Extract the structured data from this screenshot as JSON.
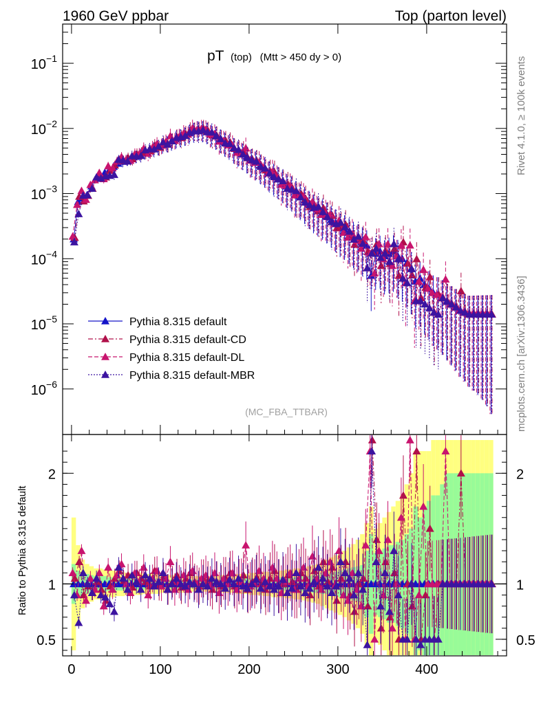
{
  "header": {
    "left": "1960 GeV ppbar",
    "right": "Top (parton level)"
  },
  "side": {
    "rivet": "Rivet 4.1.0, ≥ 100k events",
    "source": "mcplots.cern.ch [arXiv:1306.3436]"
  },
  "colors": {
    "default": "#1414c8",
    "cd": "#b0104a",
    "dl": "#c8146e",
    "mbr": "#3c14a0",
    "band_inner": "#98fb98",
    "band_outer": "#ffff80"
  },
  "chart_data": {
    "type": "line",
    "title_main": "pT",
    "title_sub": "(top)",
    "title_cut": "(Mtt > 450 dy > 0)",
    "watermark": "(MC_FBA_TTBAR)",
    "xlim": [
      -10,
      490
    ],
    "x_ticks": [
      "0",
      "100",
      "200",
      "300",
      "400"
    ],
    "x_tick_values": [
      0,
      100,
      200,
      300,
      400
    ],
    "main": {
      "yscale": "log",
      "ylim": [
        2e-07,
        0.4
      ],
      "y_ticks": [
        {
          "base": "10",
          "exp": "−1",
          "value": 0.1
        },
        {
          "base": "10",
          "exp": "−2",
          "value": 0.01
        },
        {
          "base": "10",
          "exp": "−3",
          "value": 0.001
        },
        {
          "base": "10",
          "exp": "−4",
          "value": 0.0001
        },
        {
          "base": "10",
          "exp": "−5",
          "value": 1e-05
        },
        {
          "base": "10",
          "exp": "−6",
          "value": 1e-06
        }
      ]
    },
    "ratio": {
      "ylabel": "Ratio to Pythia 8.315 default",
      "ylim": [
        0.35,
        2.35
      ],
      "y_ticks": [
        "0.5",
        "1",
        "2"
      ],
      "y_tick_values": [
        0.5,
        1,
        2
      ]
    },
    "series": [
      {
        "name": "Pythia 8.315 default",
        "key": "default",
        "style": "solid"
      },
      {
        "name": "Pythia 8.315 default-CD",
        "key": "cd",
        "style": "dashdot"
      },
      {
        "name": "Pythia 8.315 default-DL",
        "key": "dl",
        "style": "dashed"
      },
      {
        "name": "Pythia 8.315 default-MBR",
        "key": "mbr",
        "style": "dotted"
      }
    ],
    "x": [
      2.5,
      7.5,
      12.5,
      17.5,
      22.5,
      27.5,
      32.5,
      37.5,
      42.5,
      47.5,
      52.5,
      57.5,
      62.5,
      67.5,
      72.5,
      77.5,
      82.5,
      87.5,
      92.5,
      97.5,
      102.5,
      107.5,
      112.5,
      117.5,
      122.5,
      127.5,
      132.5,
      137.5,
      142.5,
      147.5,
      152.5,
      157.5,
      162.5,
      167.5,
      172.5,
      177.5,
      182.5,
      187.5,
      192.5,
      197.5,
      202.5,
      207.5,
      212.5,
      217.5,
      222.5,
      227.5,
      232.5,
      237.5,
      242.5,
      247.5,
      252.5,
      257.5,
      262.5,
      267.5,
      272.5,
      277.5,
      282.5,
      287.5,
      292.5,
      297.5,
      302.5,
      307.5,
      312.5,
      317.5,
      322.5,
      327.5,
      332.5,
      337.5,
      342.5,
      347.5,
      352.5,
      357.5,
      362.5,
      367.5,
      372.5,
      377.5,
      382.5,
      387.5,
      392.5,
      397.5,
      402.5,
      407.5,
      412.5,
      417.5,
      422.5,
      427.5,
      432.5,
      437.5,
      442.5,
      447.5,
      452.5,
      457.5,
      462.5,
      467.5,
      472.5
    ],
    "default_values": [
      0.0002,
      0.00075,
      0.00085,
      0.00095,
      0.0013,
      0.0017,
      0.0019,
      0.0021,
      0.0023,
      0.0026,
      0.0029,
      0.0031,
      0.0033,
      0.0035,
      0.0037,
      0.004,
      0.0043,
      0.0046,
      0.0049,
      0.0052,
      0.0056,
      0.006,
      0.0064,
      0.0069,
      0.0074,
      0.0079,
      0.0085,
      0.0091,
      0.0096,
      0.0095,
      0.009,
      0.0083,
      0.0076,
      0.0069,
      0.0062,
      0.0056,
      0.005,
      0.0045,
      0.0041,
      0.0037,
      0.0033,
      0.003,
      0.0027,
      0.0024,
      0.0021,
      0.0019,
      0.0017,
      0.0015,
      0.0013,
      0.0012,
      0.001,
      0.0009,
      0.0008,
      0.0007,
      0.0006,
      0.00055,
      0.0005,
      0.00045,
      0.0004,
      0.00035,
      0.0003,
      0.00028,
      0.00025,
      0.00022,
      0.0002,
      0.00018,
      0.00016,
      5.5e-05,
      0.00012,
      0.00013,
      0.00011,
      0.00012,
      0.00013,
      0.00011,
      0.0001,
      8.5e-05,
      7e-05,
      4.5e-05,
      5e-05,
      4e-05,
      3.5e-05,
      3e-05,
      2.8e-05,
      2.5e-05,
      2.2e-05,
      2e-05,
      1.8e-05,
      1.6e-05,
      1.5e-05,
      1.4e-05,
      1.4e-05,
      1.4e-05,
      1.4e-05,
      1.4e-05,
      1.4e-05
    ],
    "ratio_band": {
      "inner_rel": [
        0.18,
        0.12,
        0.1,
        0.09,
        0.08,
        0.07,
        0.07,
        0.07,
        0.06,
        0.06,
        0.06,
        0.06,
        0.05,
        0.05,
        0.05,
        0.05,
        0.05,
        0.05,
        0.05,
        0.05,
        0.04,
        0.04,
        0.04,
        0.04,
        0.04,
        0.04,
        0.04,
        0.04,
        0.04,
        0.04,
        0.04,
        0.04,
        0.04,
        0.04,
        0.04,
        0.04,
        0.04,
        0.04,
        0.05,
        0.05,
        0.05,
        0.05,
        0.05,
        0.05,
        0.05,
        0.05,
        0.06,
        0.06,
        0.06,
        0.06,
        0.06,
        0.07,
        0.07,
        0.07,
        0.08,
        0.08,
        0.09,
        0.09,
        0.1,
        0.11,
        0.12,
        0.13,
        0.14,
        0.15,
        0.16,
        0.17,
        0.3,
        0.45,
        0.28,
        0.3,
        0.32,
        0.35,
        0.35,
        0.38,
        0.4,
        0.45,
        0.5,
        0.7,
        0.6,
        0.7,
        0.75,
        0.8,
        0.8,
        0.9,
        1.0,
        1.0,
        1.0,
        1.0,
        1.0,
        1.0,
        1.0,
        1.0,
        1.0,
        1.0,
        1.0
      ],
      "outer_rel": [
        0.6,
        0.35,
        0.22,
        0.18,
        0.16,
        0.14,
        0.14,
        0.13,
        0.12,
        0.12,
        0.11,
        0.11,
        0.1,
        0.1,
        0.1,
        0.1,
        0.09,
        0.09,
        0.09,
        0.09,
        0.08,
        0.08,
        0.08,
        0.08,
        0.08,
        0.08,
        0.08,
        0.07,
        0.07,
        0.07,
        0.07,
        0.07,
        0.08,
        0.08,
        0.08,
        0.08,
        0.08,
        0.09,
        0.09,
        0.09,
        0.1,
        0.1,
        0.1,
        0.11,
        0.11,
        0.12,
        0.12,
        0.12,
        0.13,
        0.13,
        0.14,
        0.14,
        0.15,
        0.16,
        0.17,
        0.18,
        0.2,
        0.22,
        0.24,
        0.26,
        0.28,
        0.3,
        0.33,
        0.36,
        0.4,
        0.45,
        0.55,
        0.7,
        0.5,
        0.55,
        0.6,
        0.65,
        0.7,
        0.75,
        0.8,
        0.9,
        1.0,
        1.2,
        1.2,
        1.2,
        1.2,
        1.3,
        1.3,
        1.3,
        1.3,
        1.3,
        1.3,
        1.3,
        1.3,
        1.3,
        1.3,
        1.3,
        1.3,
        1.3,
        1.3
      ]
    },
    "ratios": {
      "cd": [
        1.05,
        1.2,
        0.9,
        0.98,
        0.92,
        1.02,
        0.95,
        0.85,
        0.98,
        1.05,
        1.12,
        1.03,
        1.08,
        0.97,
        1.1,
        1.05,
        1.02,
        0.98,
        1.12,
        0.98,
        1.06,
        0.95,
        1.02,
        1.08,
        0.97,
        1.05,
        1.1,
        1.02,
        0.98,
        1.05,
        1.03,
        0.95,
        1.02,
        0.98,
        1.05,
        1.1,
        0.98,
        1.02,
        1.08,
        0.95,
        1.02,
        1.06,
        1.0,
        0.95,
        1.05,
        1.12,
        0.98,
        1.0,
        1.08,
        1.02,
        0.95,
        1.1,
        1.05,
        0.9,
        1.12,
        0.98,
        1.2,
        1.02,
        1.15,
        0.85,
        1.05,
        1.2,
        0.9,
        0.75,
        1.0,
        1.05,
        0.8,
        2.3,
        1.4,
        0.6,
        1.2,
        0.7,
        1.1,
        0.5,
        1.8,
        1.0,
        0.8,
        2.2,
        0.5,
        0.9,
        1.5,
        0.5,
        1.0,
        1.0,
        1.0,
        1.0,
        1.0,
        2.0,
        1.0,
        1.0,
        1.0,
        1.0,
        1.0,
        1.0,
        1.0
      ],
      "dl": [
        1.1,
        0.9,
        1.3,
        0.85,
        1.05,
        0.95,
        1.1,
        0.8,
        1.15,
        0.95,
        1.08,
        1.18,
        1.0,
        0.92,
        1.1,
        1.02,
        1.15,
        0.9,
        1.05,
        1.12,
        0.98,
        1.05,
        1.2,
        0.95,
        1.02,
        1.08,
        0.95,
        1.12,
        1.0,
        1.05,
        1.08,
        0.98,
        1.1,
        0.92,
        1.05,
        1.0,
        1.1,
        0.95,
        1.02,
        1.35,
        0.98,
        1.0,
        1.12,
        1.05,
        0.98,
        1.15,
        1.05,
        0.92,
        1.02,
        1.1,
        0.95,
        1.05,
        1.15,
        0.98,
        1.25,
        1.05,
        0.95,
        1.1,
        1.2,
        0.98,
        1.3,
        0.9,
        0.85,
        1.1,
        0.95,
        0.8,
        1.35,
        2.2,
        0.5,
        1.3,
        0.9,
        1.4,
        0.6,
        1.0,
        1.6,
        0.5,
        2.3,
        0.5,
        0.9,
        1.7,
        1.0,
        1.0,
        1.0,
        1.0,
        2.2,
        1.0,
        1.0,
        1.0,
        1.0,
        1.0,
        1.0,
        1.0,
        1.0,
        1.0,
        1.0
      ],
      "mbr": [
        0.9,
        0.65,
        1.1,
        1.0,
        0.92,
        1.05,
        0.9,
        0.88,
        0.82,
        0.75,
        1.15,
        1.05,
        0.95,
        1.08,
        1.02,
        0.95,
        1.08,
        1.05,
        0.98,
        1.02,
        1.1,
        0.95,
        1.0,
        1.05,
        1.0,
        0.98,
        1.02,
        1.0,
        0.95,
        1.0,
        0.98,
        1.05,
        1.02,
        1.0,
        0.96,
        1.04,
        1.0,
        1.05,
        0.98,
        0.96,
        1.0,
        1.04,
        0.96,
        1.02,
        0.98,
        0.95,
        0.98,
        1.04,
        0.92,
        0.96,
        1.1,
        0.98,
        0.92,
        0.96,
        1.02,
        1.15,
        1.05,
        0.98,
        0.92,
        0.98,
        1.2,
        1.1,
        1.05,
        0.9,
        1.1,
        0.95,
        0.45,
        2.2,
        1.2,
        0.8,
        1.1,
        0.75,
        1.3,
        0.9,
        0.5,
        0.5,
        1.0,
        0.5,
        0.45,
        0.5,
        0.5,
        0.5,
        0.5,
        1.0,
        1.0,
        1.0,
        1.0,
        1.0,
        1.0,
        1.0,
        1.0,
        1.0,
        1.0,
        1.0,
        1.0
      ]
    }
  }
}
